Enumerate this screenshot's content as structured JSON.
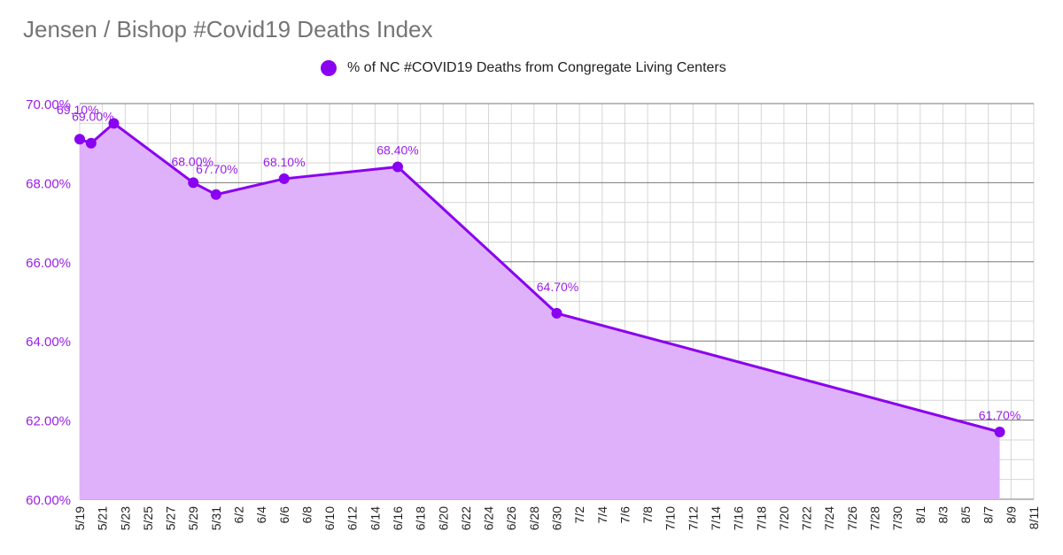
{
  "colors": {
    "series": "#8a00f0",
    "fill": "#dfb1fb",
    "axis_text": "#9a1ee8",
    "grid_major": "#7a7a7a",
    "grid_minor": "#d6d6d6",
    "title": "#757575"
  },
  "chart_data": {
    "type": "area",
    "title": "Jensen / Bishop #Covid19 Deaths Index",
    "legend": [
      "% of NC #COVID19 Deaths from Congregate Living Centers"
    ],
    "legend_position": "top",
    "xlabel": "",
    "ylabel": "",
    "ylim": [
      60,
      70
    ],
    "y_ticks": [
      60,
      62,
      64,
      66,
      68,
      70
    ],
    "y_tick_labels": [
      "60.00%",
      "62.00%",
      "64.00%",
      "66.00%",
      "68.00%",
      "70.00%"
    ],
    "x_start": "5/19",
    "x_day_range": [
      0,
      84
    ],
    "x_tick_labels": [
      "5/19",
      "5/21",
      "5/23",
      "5/25",
      "5/27",
      "5/29",
      "5/31",
      "6/2",
      "6/4",
      "6/6",
      "6/8",
      "6/10",
      "6/12",
      "6/14",
      "6/16",
      "6/18",
      "6/20",
      "6/22",
      "6/24",
      "6/26",
      "6/28",
      "6/30",
      "7/2",
      "7/4",
      "7/6",
      "7/8",
      "7/10",
      "7/12",
      "7/14",
      "7/16",
      "7/18",
      "7/20",
      "7/22",
      "7/24",
      "7/26",
      "7/28",
      "7/30",
      "8/1",
      "8/3",
      "8/5",
      "8/7",
      "8/9",
      "8/11"
    ],
    "series": [
      {
        "name": "% of NC #COVID19 Deaths from Congregate Living Centers",
        "points": [
          {
            "day": 0,
            "date": "5/19",
            "value": 69.1,
            "label": "69.10%"
          },
          {
            "day": 1,
            "date": "5/20",
            "value": 69.0,
            "label": "69.00%"
          },
          {
            "day": 3,
            "date": "5/22",
            "value": 69.5,
            "label": ""
          },
          {
            "day": 10,
            "date": "5/29",
            "value": 68.0,
            "label": "68.00%"
          },
          {
            "day": 12,
            "date": "5/31",
            "value": 67.7,
            "label": "67.70%"
          },
          {
            "day": 18,
            "date": "6/6",
            "value": 68.1,
            "label": "68.10%"
          },
          {
            "day": 28,
            "date": "6/16",
            "value": 68.4,
            "label": "68.40%"
          },
          {
            "day": 42,
            "date": "6/30",
            "value": 64.7,
            "label": "64.70%"
          },
          {
            "day": 81,
            "date": "8/8",
            "value": 61.7,
            "label": "61.70%"
          }
        ]
      }
    ]
  }
}
